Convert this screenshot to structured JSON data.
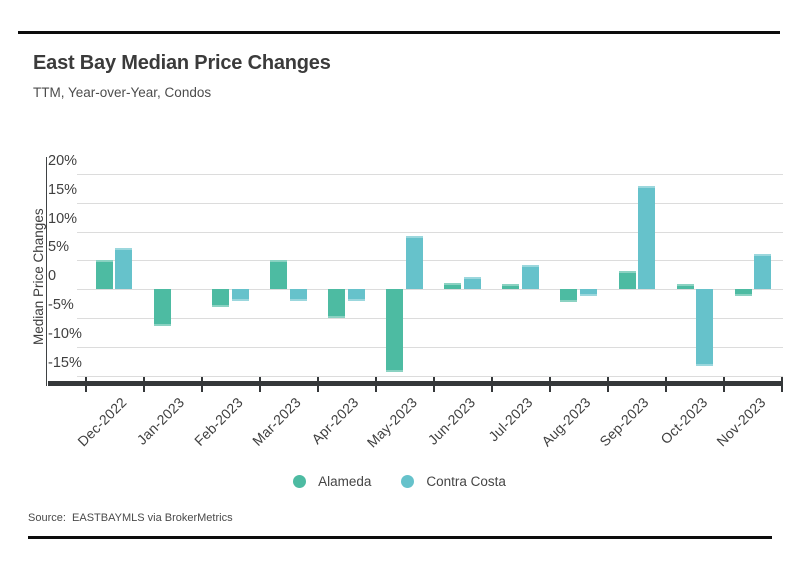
{
  "header": {
    "title": "East Bay Median Price Changes",
    "subtitle": "TTM, Year-over-Year, Condos"
  },
  "chart_data": {
    "type": "bar",
    "title": "East Bay Median Price Changes",
    "subtitle": "TTM, Year-over-Year, Condos",
    "xlabel": "",
    "ylabel": "Median Price Changes",
    "ylim": [
      -15,
      20
    ],
    "grid": "horizontal",
    "legend_position": "bottom",
    "yticks": [
      {
        "value": 20,
        "label": "20%"
      },
      {
        "value": 15,
        "label": "15%"
      },
      {
        "value": 10,
        "label": "10%"
      },
      {
        "value": 5,
        "label": "5%"
      },
      {
        "value": 0,
        "label": "0"
      },
      {
        "value": -5,
        "label": "-5%"
      },
      {
        "value": -10,
        "label": "-10%"
      },
      {
        "value": -15,
        "label": "-15%"
      }
    ],
    "categories": [
      "Dec-2022",
      "Jan-2023",
      "Feb-2023",
      "Mar-2023",
      "Apr-2023",
      "May-2023",
      "Jun-2023",
      "Jul-2023",
      "Aug-2023",
      "Sep-2023",
      "Oct-2023",
      "Nov-2023"
    ],
    "series": [
      {
        "name": "Alameda",
        "color": "#4DBBA2",
        "values": [
          5.0,
          -6.3,
          -3.0,
          5.1,
          -5.0,
          -14.4,
          1.1,
          1.0,
          -2.2,
          3.2,
          1.0,
          -1.1
        ]
      },
      {
        "name": "Contra Costa",
        "color": "#66C2CB",
        "values": [
          7.1,
          0.0,
          -2.0,
          -2.0,
          -2.0,
          9.3,
          2.1,
          4.2,
          -1.2,
          17.9,
          -13.3,
          6.2
        ]
      }
    ]
  },
  "footer": {
    "source": "Source:  EASTBAYMLS via BrokerMetrics"
  },
  "colors": {
    "gridline": "#DCDCDC",
    "axis": "#35383A",
    "rule": "#0C0C0C",
    "text": "#3F3F3F"
  }
}
